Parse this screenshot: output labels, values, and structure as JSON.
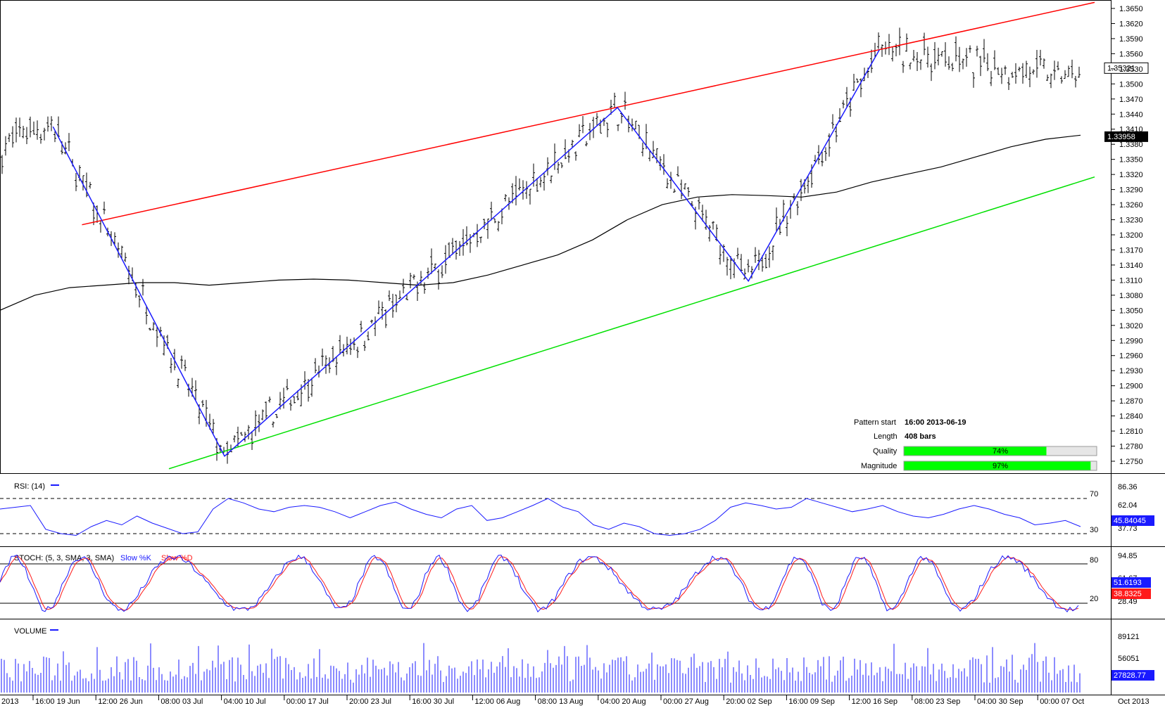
{
  "chart_data": [
    {
      "type": "candlestick",
      "panel": "price",
      "y_ticks": [
        "1.3650",
        "1.3620",
        "1.3590",
        "1.3560",
        "1.3530",
        "1.3500",
        "1.3470",
        "1.3440",
        "1.3410",
        "1.3380",
        "1.3350",
        "1.3320",
        "1.3290",
        "1.3260",
        "1.3230",
        "1.3200",
        "1.3170",
        "1.3140",
        "1.3110",
        "1.3080",
        "1.3050",
        "1.3020",
        "1.2990",
        "1.2960",
        "1.2930",
        "1.2900",
        "1.2870",
        "1.2840",
        "1.2810",
        "1.2780",
        "1.2750"
      ],
      "ylim": [
        1.2735,
        1.3665
      ],
      "price_label": "1.35321",
      "ma_label": "1.33958",
      "zigzag_points": [
        {
          "date": "2013-06-19 16:00",
          "price": 1.3415
        },
        {
          "date": "2013-07-08",
          "price": 1.276
        },
        {
          "date": "2013-08-19",
          "price": 1.3453
        },
        {
          "date": "2013-09-02",
          "price": 1.3108
        },
        {
          "date": "2013-09-16",
          "price": 1.3568
        }
      ],
      "resistance_line": [
        {
          "date": "2013-06-19",
          "price": 1.322
        },
        {
          "date": "2013-10-09",
          "price": 1.3662
        }
      ],
      "support_line": [
        {
          "date": "2013-07-03",
          "price": 1.2735
        },
        {
          "date": "2013-10-09",
          "price": 1.3315
        }
      ],
      "moving_average": [
        1.305,
        1.308,
        1.3095,
        1.31,
        1.3105,
        1.3105,
        1.31,
        1.3105,
        1.311,
        1.3112,
        1.311,
        1.3105,
        1.31,
        1.3105,
        1.312,
        1.314,
        1.316,
        1.319,
        1.323,
        1.326,
        1.3275,
        1.328,
        1.3278,
        1.3275,
        1.3285,
        1.3305,
        1.332,
        1.3335,
        1.3355,
        1.3375,
        1.339,
        1.3398
      ]
    },
    {
      "type": "line",
      "panel": "rsi",
      "title": "RSI: (14)",
      "y_ticks_left": [
        "70",
        "30"
      ],
      "y_ticks_right": [
        "86.36",
        "62.04",
        "37.73"
      ],
      "value_label": "45.84045",
      "series": [
        {
          "values": [
            58,
            60,
            62,
            35,
            30,
            28,
            38,
            45,
            40,
            50,
            42,
            36,
            30,
            32,
            58,
            70,
            65,
            58,
            55,
            60,
            62,
            60,
            55,
            48,
            55,
            62,
            66,
            58,
            52,
            48,
            58,
            62,
            45,
            48,
            55,
            62,
            70,
            60,
            55,
            40,
            35,
            42,
            38,
            30,
            28,
            30,
            35,
            45,
            60,
            65,
            62,
            58,
            60,
            70,
            65,
            60,
            55,
            58,
            62,
            55,
            50,
            48,
            52,
            58,
            62,
            58,
            52,
            48,
            40,
            42,
            45,
            38
          ]
        }
      ]
    },
    {
      "type": "line",
      "panel": "stochastic",
      "title": "STOCH: (5, 3, SMA, 3, SMA)",
      "legend": [
        "Slow %K",
        "Slow %D"
      ],
      "y_ticks_left": [
        "80",
        "20"
      ],
      "y_ticks_right": [
        "94.85",
        "61.67",
        "28.49"
      ],
      "value_labels": [
        "51.6193",
        "38.8325"
      ],
      "colors": {
        "k": "#1a1aff",
        "d": "#ff1a1a"
      }
    },
    {
      "type": "bar",
      "panel": "volume",
      "title": "VOLUME",
      "y_ticks_right": [
        "89121",
        "56051"
      ],
      "value_label": "27828.77"
    }
  ],
  "x_axis": {
    "labels": [
      "2013",
      "16:00 19 Jun",
      "12:00 26 Jun",
      "08:00 03 Jul",
      "04:00 10 Jul",
      "00:00 17 Jul",
      "20:00 23 Jul",
      "16:00 30 Jul",
      "12:00 06 Aug",
      "08:00 13 Aug",
      "04:00 20 Aug",
      "00:00 27 Aug",
      "20:00 02 Sep",
      "16:00 09 Sep",
      "12:00 16 Sep",
      "08:00 23 Sep",
      "04:00 30 Sep",
      "00:00 07 Oct",
      "Oct 2013"
    ]
  },
  "pattern_info": {
    "start_label": "Pattern start",
    "start_value": "16:00 2013-06-19",
    "length_label": "Length",
    "length_value": "408 bars",
    "quality_label": "Quality",
    "quality_value": "74%",
    "quality_fraction": 0.74,
    "magnitude_label": "Magnitude",
    "magnitude_value": "97%",
    "magnitude_fraction": 0.97
  },
  "colors": {
    "resistance": "#ff0000",
    "support": "#00e000",
    "zigzag": "#1a1aff",
    "moving_average": "#000000",
    "bar_fill": "#00ff00"
  }
}
